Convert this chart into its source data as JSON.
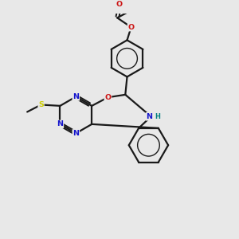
{
  "background_color": "#e8e8e8",
  "bond_color": "#1a1a1a",
  "atom_colors": {
    "N": "#1414cc",
    "O": "#cc1414",
    "S": "#cccc00",
    "H": "#008080",
    "C": "#1a1a1a"
  },
  "figsize": [
    3.0,
    3.0
  ],
  "dpi": 100
}
